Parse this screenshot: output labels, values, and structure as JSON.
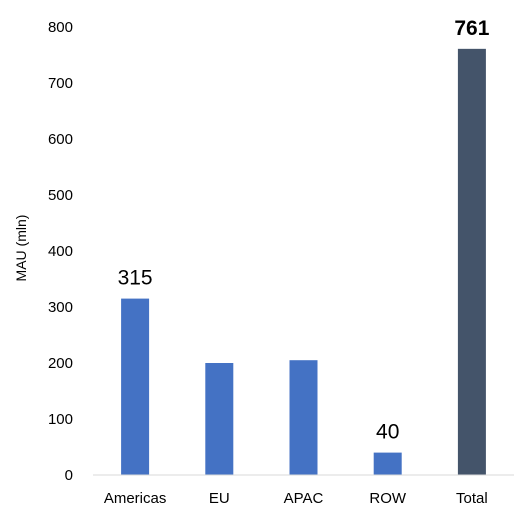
{
  "chart_data": {
    "type": "bar",
    "title": "",
    "xlabel": "",
    "ylabel": "MAU (mln)",
    "categories": [
      "Americas",
      "EU",
      "APAC",
      "ROW",
      "Total"
    ],
    "values": [
      315,
      200,
      205,
      40,
      761
    ],
    "data_labels": [
      "315",
      "",
      "",
      "40",
      "761"
    ],
    "data_label_bold": [
      false,
      false,
      false,
      false,
      true
    ],
    "bar_colors": [
      "#4472C4",
      "#4472C4",
      "#4472C4",
      "#4472C4",
      "#44546A"
    ],
    "ylim": [
      0,
      800
    ],
    "y_ticks": [
      0,
      100,
      200,
      300,
      400,
      500,
      600,
      700,
      800
    ],
    "grid": false,
    "legend": "none"
  }
}
